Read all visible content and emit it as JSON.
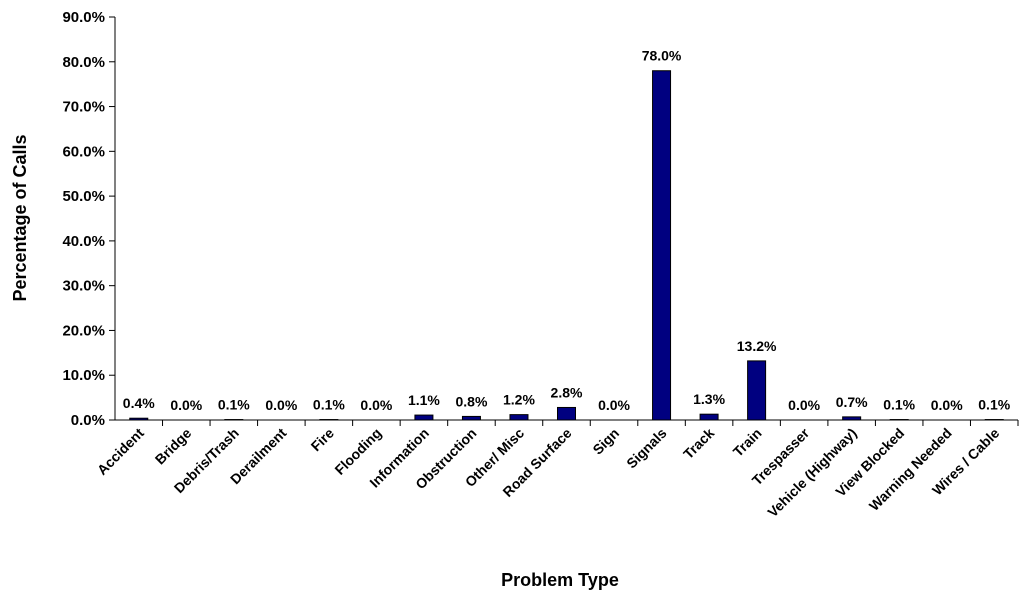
{
  "chart_data": {
    "type": "bar",
    "xlabel": "Problem Type",
    "ylabel": "Percentage of Calls",
    "ylim": [
      0,
      90
    ],
    "y_ticks": [
      0,
      10,
      20,
      30,
      40,
      50,
      60,
      70,
      80,
      90
    ],
    "y_tick_labels": [
      "0.0%",
      "10.0%",
      "20.0%",
      "30.0%",
      "40.0%",
      "50.0%",
      "60.0%",
      "70.0%",
      "80.0%",
      "90.0%"
    ],
    "grid": false,
    "legend": "none",
    "bar_color": "#000080",
    "categories": [
      "Accident",
      "Bridge",
      "Debris/Trash",
      "Derailment",
      "Fire",
      "Flooding",
      "Information",
      "Obstruction",
      "Other/ Misc",
      "Road Surface",
      "Sign",
      "Signals",
      "Track",
      "Train",
      "Trespasser",
      "Vehicle (Highway)",
      "View Blocked",
      "Warning Needed",
      "Wires / Cable"
    ],
    "values": [
      0.4,
      0.0,
      0.1,
      0.0,
      0.1,
      0.0,
      1.1,
      0.8,
      1.2,
      2.8,
      0.0,
      78.0,
      1.3,
      13.2,
      0.0,
      0.7,
      0.1,
      0.0,
      0.1
    ],
    "data_labels": [
      "0.4%",
      "0.0%",
      "0.1%",
      "0.0%",
      "0.1%",
      "0.0%",
      "1.1%",
      "0.8%",
      "1.2%",
      "2.8%",
      "0.0%",
      "78.0%",
      "1.3%",
      "13.2%",
      "0.0%",
      "0.7%",
      "0.1%",
      "0.0%",
      "0.1%"
    ]
  }
}
